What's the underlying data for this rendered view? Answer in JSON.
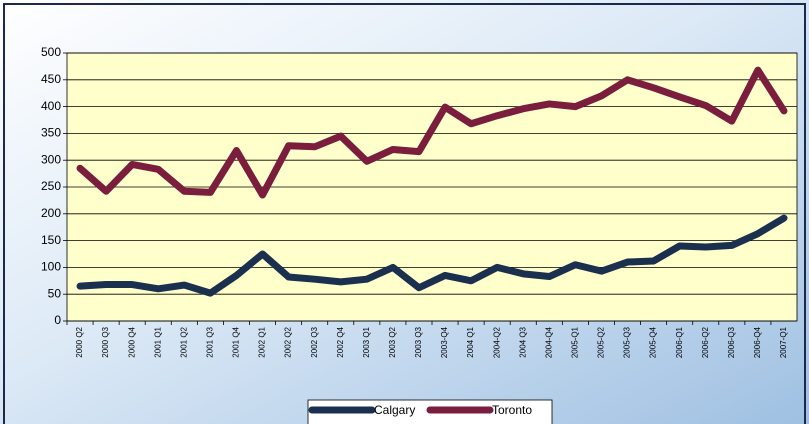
{
  "chart_data": {
    "type": "line",
    "categories": [
      "2000 Q2",
      "2000 Q3",
      "2000 Q4",
      "2001 Q1",
      "2001 Q2",
      "2001 Q3",
      "2001 Q4",
      "2002 Q1",
      "2002 Q2",
      "2002 Q3",
      "2002 Q4",
      "2003 Q1",
      "2003 Q2",
      "2003 Q3",
      "2003-Q4",
      "2004 Q1",
      "2004-Q2",
      "2004 Q3",
      "2004-Q4",
      "2005-Q1",
      "2005-Q2",
      "2005-Q3",
      "2005-Q4",
      "2006-Q1",
      "2006-Q2",
      "2006-Q3",
      "2006-Q4",
      "2007-Q1"
    ],
    "series": [
      {
        "name": "Calgary",
        "color": "#1b2f4e",
        "values": [
          65,
          68,
          68,
          60,
          67,
          52,
          85,
          125,
          82,
          78,
          73,
          78,
          100,
          62,
          85,
          75,
          100,
          88,
          83,
          105,
          93,
          110,
          112,
          140,
          138,
          141,
          163,
          192
        ]
      },
      {
        "name": "Toronto",
        "color": "#7b1d3d",
        "values": [
          285,
          242,
          292,
          283,
          242,
          240,
          318,
          235,
          327,
          325,
          345,
          298,
          320,
          316,
          399,
          368,
          383,
          396,
          405,
          400,
          420,
          450,
          435,
          418,
          402,
          373,
          468,
          392
        ]
      }
    ],
    "ylim": [
      0,
      500
    ],
    "yticks": [
      0,
      50,
      100,
      150,
      200,
      250,
      300,
      350,
      400,
      450,
      500
    ],
    "grid": true
  }
}
